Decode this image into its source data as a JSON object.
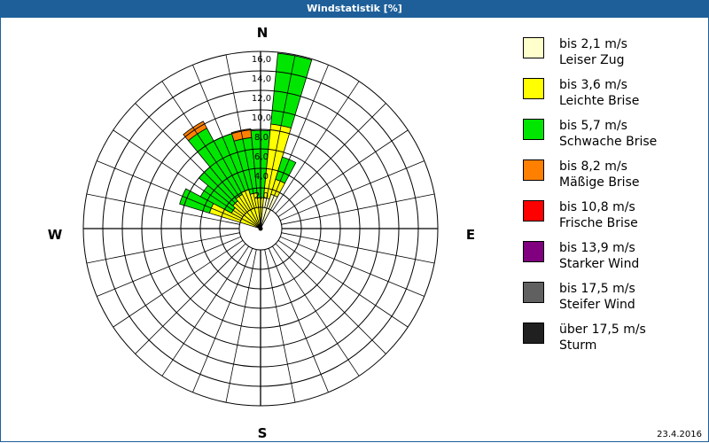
{
  "window": {
    "title": "Windstatistik [%]"
  },
  "compass": {
    "n": "N",
    "e": "E",
    "s": "S",
    "w": "W"
  },
  "footer": {
    "date": "23.4.2016"
  },
  "legend": [
    {
      "range": "bis 2,1 m/s",
      "name": "Leiser Zug",
      "color": "#ffffcc"
    },
    {
      "range": "bis 3,6 m/s",
      "name": "Leichte Brise",
      "color": "#ffff00"
    },
    {
      "range": "bis 5,7 m/s",
      "name": "Schwache Brise",
      "color": "#00e600"
    },
    {
      "range": "bis 8,2 m/s",
      "name": "Mäßige Brise",
      "color": "#ff8000"
    },
    {
      "range": "bis 10,8 m/s",
      "name": "Frische Brise",
      "color": "#ff0000"
    },
    {
      "range": "bis 13,9 m/s",
      "name": "Starker Wind",
      "color": "#800080"
    },
    {
      "range": "bis 17,5 m/s",
      "name": "Steifer Wind",
      "color": "#606060"
    },
    {
      "range": "über 17,5 m/s",
      "name": "Sturm",
      "color": "#202020"
    }
  ],
  "chart_data": {
    "type": "wind-rose (stacked polar bar)",
    "title": "Windstatistik [%]",
    "unit": "%",
    "radial_ticks": [
      "2,0",
      "4,0",
      "6,0",
      "8,0",
      "10,0",
      "12,0",
      "14,0",
      "16,0"
    ],
    "rlim": [
      0,
      16
    ],
    "directions_count": 32,
    "sector_width_deg": 11.25,
    "series_names": [
      "Leiser Zug",
      "Leichte Brise",
      "Schwache Brise",
      "Mäßige Brise",
      "Frische Brise",
      "Starker Wind",
      "Steifer Wind",
      "Sturm"
    ],
    "bars": [
      {
        "angle": 292.5,
        "cumulative": {
          "Leiser Zug": 0,
          "Leichte Brise": 3.3,
          "Schwache Brise": 6.5
        }
      },
      {
        "angle": 303.75,
        "cumulative": {
          "Leiser Zug": 0,
          "Leichte Brise": 1.2,
          "Schwache Brise": 4.8
        }
      },
      {
        "angle": 315,
        "cumulative": {
          "Leiser Zug": 0,
          "Leichte Brise": 1.5,
          "Schwache Brise": 6.0
        }
      },
      {
        "angle": 326.25,
        "cumulative": {
          "Leiser Zug": 0,
          "Leichte Brise": 1.8,
          "Schwache Brise": 9.5,
          "Mäßige Brise": 10.3
        }
      },
      {
        "angle": 337.5,
        "cumulative": {
          "Leiser Zug": 0,
          "Leichte Brise": 2.0,
          "Schwache Brise": 8.0
        }
      },
      {
        "angle": 348.75,
        "cumulative": {
          "Leiser Zug": 0,
          "Leichte Brise": 1.5,
          "Schwache Brise": 7.2,
          "Mäßige Brise": 8.1
        }
      },
      {
        "angle": 0,
        "cumulative": {
          "Leiser Zug": 0,
          "Leichte Brise": 1.0,
          "Schwache Brise": 7.9
        }
      },
      {
        "angle": 11.25,
        "cumulative": {
          "Leiser Zug": 1.0,
          "Leichte Brise": 8.6,
          "Schwache Brise": 15.9
        }
      },
      {
        "angle": 22.5,
        "cumulative": {
          "Leiser Zug": 1.5,
          "Leichte Brise": 3.1,
          "Schwache Brise": 5.5
        }
      }
    ],
    "legend_position": "right",
    "grid": true
  }
}
